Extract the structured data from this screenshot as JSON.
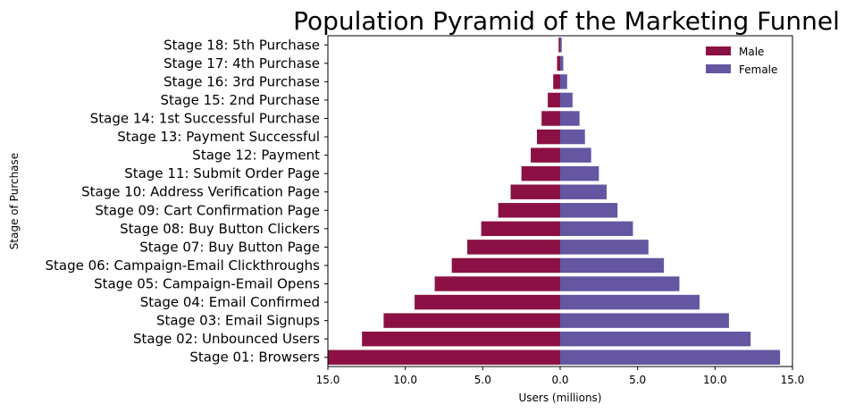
{
  "chart_data": {
    "type": "bar",
    "orientation": "horizontal",
    "title": "Population Pyramid of the Marketing Funnel",
    "xlabel": "Users (millions)",
    "ylabel": "Stage of Purchase",
    "xlim": [
      -15.0,
      15.0
    ],
    "xticks": [
      -15,
      -10,
      -5,
      0,
      5,
      10,
      15
    ],
    "xtick_labels": [
      "15.0",
      "10.0",
      "5.0",
      "0.0",
      "5.0",
      "10.0",
      "15.0"
    ],
    "grid": false,
    "legend_position": "top-right",
    "categories": [
      "Stage 01: Browsers",
      "Stage 02: Unbounced Users",
      "Stage 03: Email Signups",
      "Stage 04: Email Confirmed",
      "Stage 05: Campaign-Email Opens",
      "Stage 06: Campaign-Email Clickthroughs",
      "Stage 07: Buy Button Page",
      "Stage 08: Buy Button Clickers",
      "Stage 09: Cart Confirmation Page",
      "Stage 10: Address Verification Page",
      "Stage 11: Submit Order Page",
      "Stage 12: Payment",
      "Stage 13: Payment Successful",
      "Stage 14: 1st Successful Purchase",
      "Stage 15: 2nd Purchase",
      "Stage 16: 3rd Purchase",
      "Stage 17: 4th Purchase",
      "Stage 18: 5th Purchase"
    ],
    "series": [
      {
        "name": "Male",
        "color": "#8b1144",
        "values": [
          -15.0,
          -12.8,
          -11.4,
          -9.4,
          -8.1,
          -7.0,
          -6.0,
          -5.1,
          -4.0,
          -3.2,
          -2.5,
          -1.9,
          -1.5,
          -1.2,
          -0.8,
          -0.45,
          -0.2,
          -0.1
        ]
      },
      {
        "name": "Female",
        "color": "#6556a1",
        "values": [
          14.2,
          12.3,
          10.9,
          9.0,
          7.7,
          6.7,
          5.7,
          4.7,
          3.7,
          3.0,
          2.5,
          2.0,
          1.6,
          1.25,
          0.8,
          0.45,
          0.2,
          0.1
        ]
      }
    ]
  }
}
